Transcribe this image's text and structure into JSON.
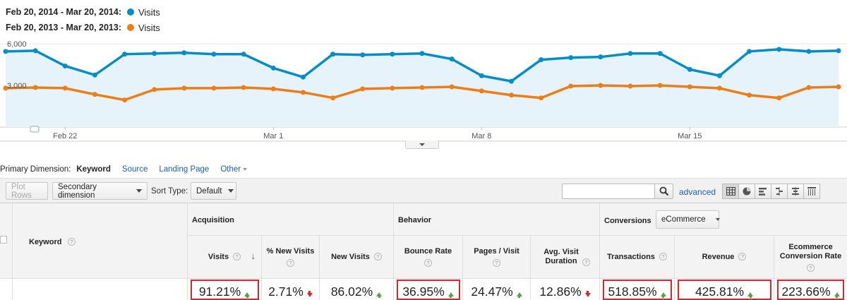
{
  "legend": {
    "current": {
      "range": "Feb 20, 2014 - Mar 20, 2014:",
      "metric": "Visits",
      "color": "#058dc7"
    },
    "previous": {
      "range": "Feb 20, 2013 - Mar 20, 2013:",
      "metric": "Visits",
      "color": "#ed7e17"
    }
  },
  "chart_data": {
    "type": "line",
    "x": [
      "Feb 20",
      "Feb 21",
      "Feb 22",
      "Feb 23",
      "Feb 24",
      "Feb 25",
      "Feb 26",
      "Feb 27",
      "Feb 28",
      "Mar 1",
      "Mar 2",
      "Mar 3",
      "Mar 4",
      "Mar 5",
      "Mar 6",
      "Mar 7",
      "Mar 8",
      "Mar 9",
      "Mar 10",
      "Mar 11",
      "Mar 12",
      "Mar 13",
      "Mar 14",
      "Mar 15",
      "Mar 16",
      "Mar 17",
      "Mar 18",
      "Mar 19",
      "Mar 20"
    ],
    "xticks": [
      "Feb 22",
      "Mar 1",
      "Mar 8",
      "Mar 15"
    ],
    "yticks": [
      "6,000",
      "3,000"
    ],
    "ylim": [
      0,
      6000
    ],
    "series": [
      {
        "name": "Feb 20, 2014 - Mar 20, 2014",
        "color": "#058dc7",
        "values": [
          5450,
          5500,
          4400,
          3750,
          5250,
          5300,
          5350,
          5250,
          5250,
          4250,
          3600,
          5250,
          5200,
          5250,
          5300,
          4900,
          3700,
          3300,
          4850,
          5000,
          5050,
          5300,
          5300,
          4150,
          3700,
          5450,
          5600,
          5450,
          5500
        ]
      },
      {
        "name": "Feb 20, 2013 - Mar 20, 2013",
        "color": "#ed7e17",
        "values": [
          2800,
          2850,
          2800,
          2350,
          1950,
          2700,
          2800,
          2800,
          2850,
          2750,
          2500,
          2100,
          2750,
          2800,
          2850,
          2900,
          2600,
          2300,
          2100,
          2950,
          3000,
          2950,
          3000,
          2900,
          2800,
          2300,
          2100,
          2850,
          2900
        ]
      }
    ],
    "grid": true,
    "legend_position": "top-left"
  },
  "primary_dimension": {
    "label": "Primary Dimension:",
    "active": "Keyword",
    "links": [
      "Source",
      "Landing Page",
      "Other"
    ]
  },
  "toolbar": {
    "plot_rows": "Plot Rows",
    "secondary_dimension": "Secondary dimension",
    "sort_type_label": "Sort Type:",
    "sort_type_value": "Default",
    "search_value": "",
    "advanced": "advanced"
  },
  "table": {
    "keyword_header": "Keyword",
    "groups": {
      "acquisition": "Acquisition",
      "behavior": "Behavior",
      "conversions": "Conversions",
      "conversions_select": "eCommerce"
    },
    "columns": [
      {
        "label": "Visits",
        "value": "91.21%",
        "trend": "up"
      },
      {
        "label": "% New Visits",
        "value": "2.71%",
        "trend": "down"
      },
      {
        "label": "New Visits",
        "value": "86.02%",
        "trend": "up"
      },
      {
        "label": "Bounce Rate",
        "value": "36.95%",
        "trend": "up"
      },
      {
        "label": "Pages / Visit",
        "value": "24.47%",
        "trend": "up"
      },
      {
        "label": "Avg. Visit Duration",
        "value": "12.86%",
        "trend": "down"
      },
      {
        "label": "Transactions",
        "value": "518.85%",
        "trend": "up"
      },
      {
        "label": "Revenue",
        "value": "425.81%",
        "trend": "up"
      },
      {
        "label": "Ecommerce Conversion Rate",
        "value": "223.66%",
        "trend": "up"
      }
    ],
    "help": "?"
  }
}
